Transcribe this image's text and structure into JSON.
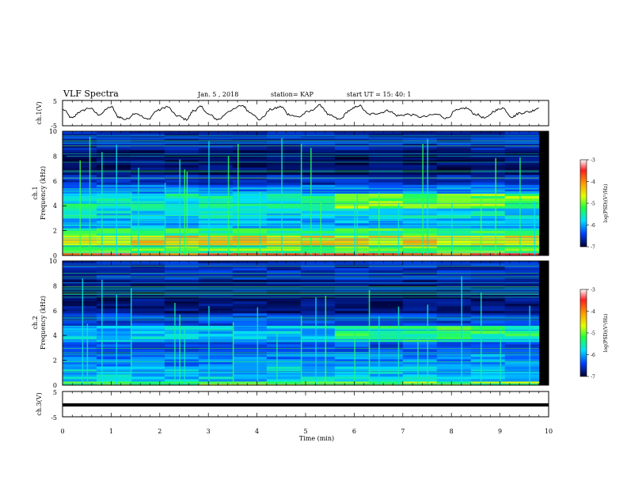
{
  "header": {
    "title": "VLF Spectra",
    "date": "Jan. 5 , 2018",
    "station": "station= KAP",
    "start": "start UT =  15: 40: 1"
  },
  "chart_data": [
    {
      "type": "line",
      "panel": "ch1-waveform",
      "ylabel": "ch.1(V)",
      "ylim": [
        -5,
        5
      ],
      "yticks": [
        5,
        -5
      ],
      "xlim": [
        0,
        10
      ],
      "note_data": "Irregular oscillating waveform, amplitude about ±3 V, roughly 13 cycles over 9.8 min; flatter near 7–8 min.",
      "x": [
        0,
        0.2,
        0.35,
        0.55,
        0.75,
        1.0,
        1.15,
        1.3,
        1.5,
        1.75,
        1.95,
        2.15,
        2.35,
        2.55,
        2.7,
        2.85,
        3.0,
        3.2,
        3.45,
        3.7,
        3.85,
        4.05,
        4.3,
        4.5,
        4.65,
        4.85,
        5.05,
        5.3,
        5.5,
        5.7,
        5.9,
        6.1,
        6.3,
        6.5,
        6.7,
        6.9,
        7.1,
        7.4,
        7.7,
        7.9,
        8.1,
        8.3,
        8.5,
        8.7,
        8.9,
        9.05,
        9.25,
        9.4,
        9.6,
        9.8
      ],
      "y": [
        1.5,
        -2.0,
        0.5,
        2.0,
        -0.5,
        2.5,
        -1.5,
        -2.5,
        0.0,
        -2.5,
        1.0,
        2.5,
        -1.0,
        -2.5,
        1.0,
        2.5,
        -0.5,
        -2.5,
        1.0,
        3.0,
        0.5,
        -2.5,
        1.5,
        2.5,
        -0.5,
        -1.5,
        0.5,
        3.0,
        -1.0,
        -2.5,
        1.0,
        3.0,
        -0.5,
        0.0,
        1.0,
        -1.0,
        -0.5,
        -1.5,
        -0.5,
        -2.0,
        1.0,
        2.0,
        -0.5,
        -2.0,
        1.0,
        2.0,
        -1.5,
        0.0,
        0.5,
        2.0
      ]
    },
    {
      "type": "heatmap",
      "panel": "ch1-spectrogram",
      "title": "ch.1",
      "ylabel": "Frequency (kHz)",
      "ylim": [
        0,
        10
      ],
      "yticks": [
        0,
        2,
        4,
        6,
        8,
        10
      ],
      "xlim": [
        0,
        10
      ],
      "data_extent_x": [
        0,
        9.8
      ],
      "colorbar": {
        "label": "log(PSD)(V²/Hz)",
        "range": [
          -7,
          -3
        ],
        "ticks": [
          -3,
          -4,
          -5,
          -6,
          -7
        ]
      },
      "bands": [
        {
          "f": [
            0,
            0.2
          ],
          "level": -3.5
        },
        {
          "f": [
            0.2,
            0.8
          ],
          "level": -4.6
        },
        {
          "f": [
            0.8,
            1.6
          ],
          "level": -4.0
        },
        {
          "f": [
            1.6,
            2.2
          ],
          "level": -4.8
        },
        {
          "f": [
            2.2,
            3.0
          ],
          "level": -5.4
        },
        {
          "f": [
            3.0,
            3.8
          ],
          "level": -5.2
        },
        {
          "f": [
            3.8,
            5.0
          ],
          "level": -5.0
        },
        {
          "f": [
            5.0,
            5.7
          ],
          "level": -5.6
        },
        {
          "f": [
            5.7,
            6.5
          ],
          "level": -6.2
        },
        {
          "f": [
            6.5,
            8.5
          ],
          "level": -6.7
        },
        {
          "f": [
            8.5,
            10
          ],
          "level": -6.3
        }
      ],
      "vertical_bursts_min": [
        0.35,
        0.55,
        0.8,
        1.1,
        1.4,
        1.55,
        2.1,
        2.4,
        2.5,
        2.55,
        3.0,
        3.4,
        3.6,
        4.05,
        4.5,
        4.9,
        5.1,
        5.3,
        6.0,
        6.05,
        6.5,
        6.9,
        7.4,
        7.5,
        8.0,
        8.6,
        8.9,
        9.4,
        9.7
      ]
    },
    {
      "type": "heatmap",
      "panel": "ch2-spectrogram",
      "title": "ch.2",
      "ylabel": "Frequency (kHz)",
      "ylim": [
        0,
        10
      ],
      "yticks": [
        0,
        2,
        4,
        6,
        8,
        10
      ],
      "xlim": [
        0,
        10
      ],
      "data_extent_x": [
        0,
        9.8
      ],
      "colorbar": {
        "label": "log(PSD)(V²/Hz)",
        "range": [
          -7,
          -3
        ],
        "ticks": [
          -3,
          -4,
          -5,
          -6,
          -7
        ]
      },
      "bands": [
        {
          "f": [
            0,
            0.3
          ],
          "level": -4.5
        },
        {
          "f": [
            0.3,
            1.5
          ],
          "level": -5.3
        },
        {
          "f": [
            1.5,
            2.5
          ],
          "level": -5.6
        },
        {
          "f": [
            2.5,
            3.5
          ],
          "level": -5.9
        },
        {
          "f": [
            3.5,
            4.8
          ],
          "level": -5.3
        },
        {
          "f": [
            4.8,
            5.8
          ],
          "level": -6.0
        },
        {
          "f": [
            5.8,
            8.5
          ],
          "level": -6.6
        },
        {
          "f": [
            8.5,
            10
          ],
          "level": -6.2
        }
      ],
      "vertical_bursts_min": [
        0.4,
        0.5,
        0.8,
        1.1,
        1.4,
        2.3,
        2.4,
        2.5,
        3.0,
        3.5,
        4.0,
        4.4,
        4.9,
        5.2,
        5.4,
        6.0,
        6.3,
        6.5,
        6.9,
        7.3,
        7.5,
        8.2,
        8.6,
        9.0,
        9.6
      ]
    },
    {
      "type": "line",
      "panel": "ch3-waveform",
      "ylabel": "ch.3(V)",
      "ylim": [
        -5,
        5
      ],
      "yticks": [
        5,
        -5
      ],
      "xlim": [
        0,
        10
      ],
      "xlabel": "Time (min)",
      "xticks": [
        0,
        1,
        2,
        3,
        4,
        5,
        6,
        7,
        8,
        9,
        10
      ],
      "x": [
        0,
        9.8
      ],
      "y": [
        0,
        0
      ]
    }
  ]
}
